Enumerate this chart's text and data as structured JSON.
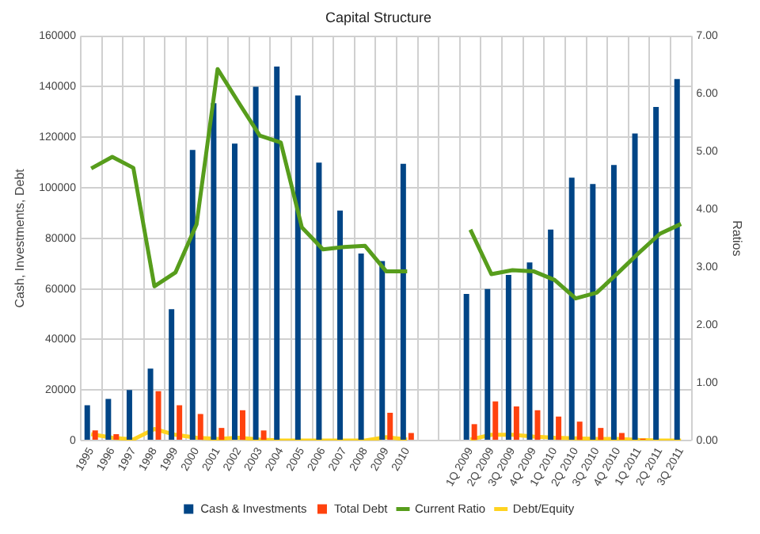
{
  "chart_data": {
    "type": "bar",
    "title": "Capital Structure",
    "ylabel": "Cash, Investments, Debt",
    "y2label": "Ratios",
    "categories": [
      "1995",
      "1996",
      "1997",
      "1998",
      "1999",
      "2000",
      "2001",
      "2002",
      "2003",
      "2004",
      "2005",
      "2006",
      "2007",
      "2008",
      "2009",
      "2010",
      null,
      null,
      "1Q 2009",
      "2Q 2009",
      "3Q 2009",
      "4Q 2009",
      "1Q 2010",
      "2Q 2010",
      "3Q 2010",
      "4Q 2010",
      "1Q 2011",
      "2Q 2011",
      "3Q 2011"
    ],
    "series": [
      {
        "name": "Cash & Investments",
        "color": "#004586",
        "values": [
          14000,
          16500,
          20000,
          28500,
          52000,
          115000,
          133500,
          117500,
          140000,
          148000,
          136500,
          110000,
          91000,
          74000,
          71000,
          109500,
          null,
          null,
          58000,
          60000,
          65500,
          70500,
          83500,
          104000,
          101500,
          109000,
          121500,
          132000,
          143000
        ]
      },
      {
        "name": "Total Debt",
        "color": "#ff420e",
        "values": [
          4000,
          2500,
          0,
          19500,
          14000,
          10500,
          5000,
          12000,
          4000,
          0,
          0,
          0,
          0,
          0,
          11000,
          3000,
          null,
          null,
          6500,
          15500,
          13500,
          12000,
          9500,
          7500,
          5000,
          3000,
          700,
          0,
          0
        ]
      },
      {
        "name": "Current Ratio",
        "type": "line",
        "axis": "y2",
        "color": "#579d1c",
        "values": [
          4.71,
          4.91,
          4.72,
          2.67,
          2.91,
          3.74,
          6.43,
          5.85,
          5.28,
          5.16,
          3.69,
          3.31,
          3.35,
          3.37,
          2.93,
          2.93,
          null,
          null,
          3.65,
          2.88,
          2.95,
          2.93,
          2.78,
          2.46,
          2.56,
          2.9,
          3.25,
          3.58,
          3.75
        ]
      },
      {
        "name": "Debt/Equity",
        "type": "line",
        "axis": "y2",
        "color": "#ffd320",
        "values": [
          0.11,
          0.05,
          0.02,
          0.2,
          0.1,
          0.05,
          0.03,
          0.05,
          0.02,
          0,
          0,
          0,
          0,
          0,
          0.06,
          0.02,
          null,
          null,
          0.02,
          0.1,
          0.1,
          0.07,
          0.05,
          0.04,
          0.03,
          0.03,
          0.01,
          0,
          0
        ]
      }
    ],
    "ylim": [
      0,
      160000
    ],
    "yticks": [
      0,
      20000,
      40000,
      60000,
      80000,
      100000,
      120000,
      140000,
      160000
    ],
    "y2lim": [
      0,
      7
    ],
    "y2ticks": [
      {
        "value": 0,
        "label": "0.00"
      },
      {
        "value": 1,
        "label": "1.00"
      },
      {
        "value": 2,
        "label": "2.00"
      },
      {
        "value": 3,
        "label": "3.00"
      },
      {
        "value": 4,
        "label": "4.00"
      },
      {
        "value": 5,
        "label": "5.00"
      },
      {
        "value": 6,
        "label": "6.00"
      },
      {
        "value": 7,
        "label": "7.00"
      }
    ],
    "grid": true,
    "legend": "bottom"
  }
}
